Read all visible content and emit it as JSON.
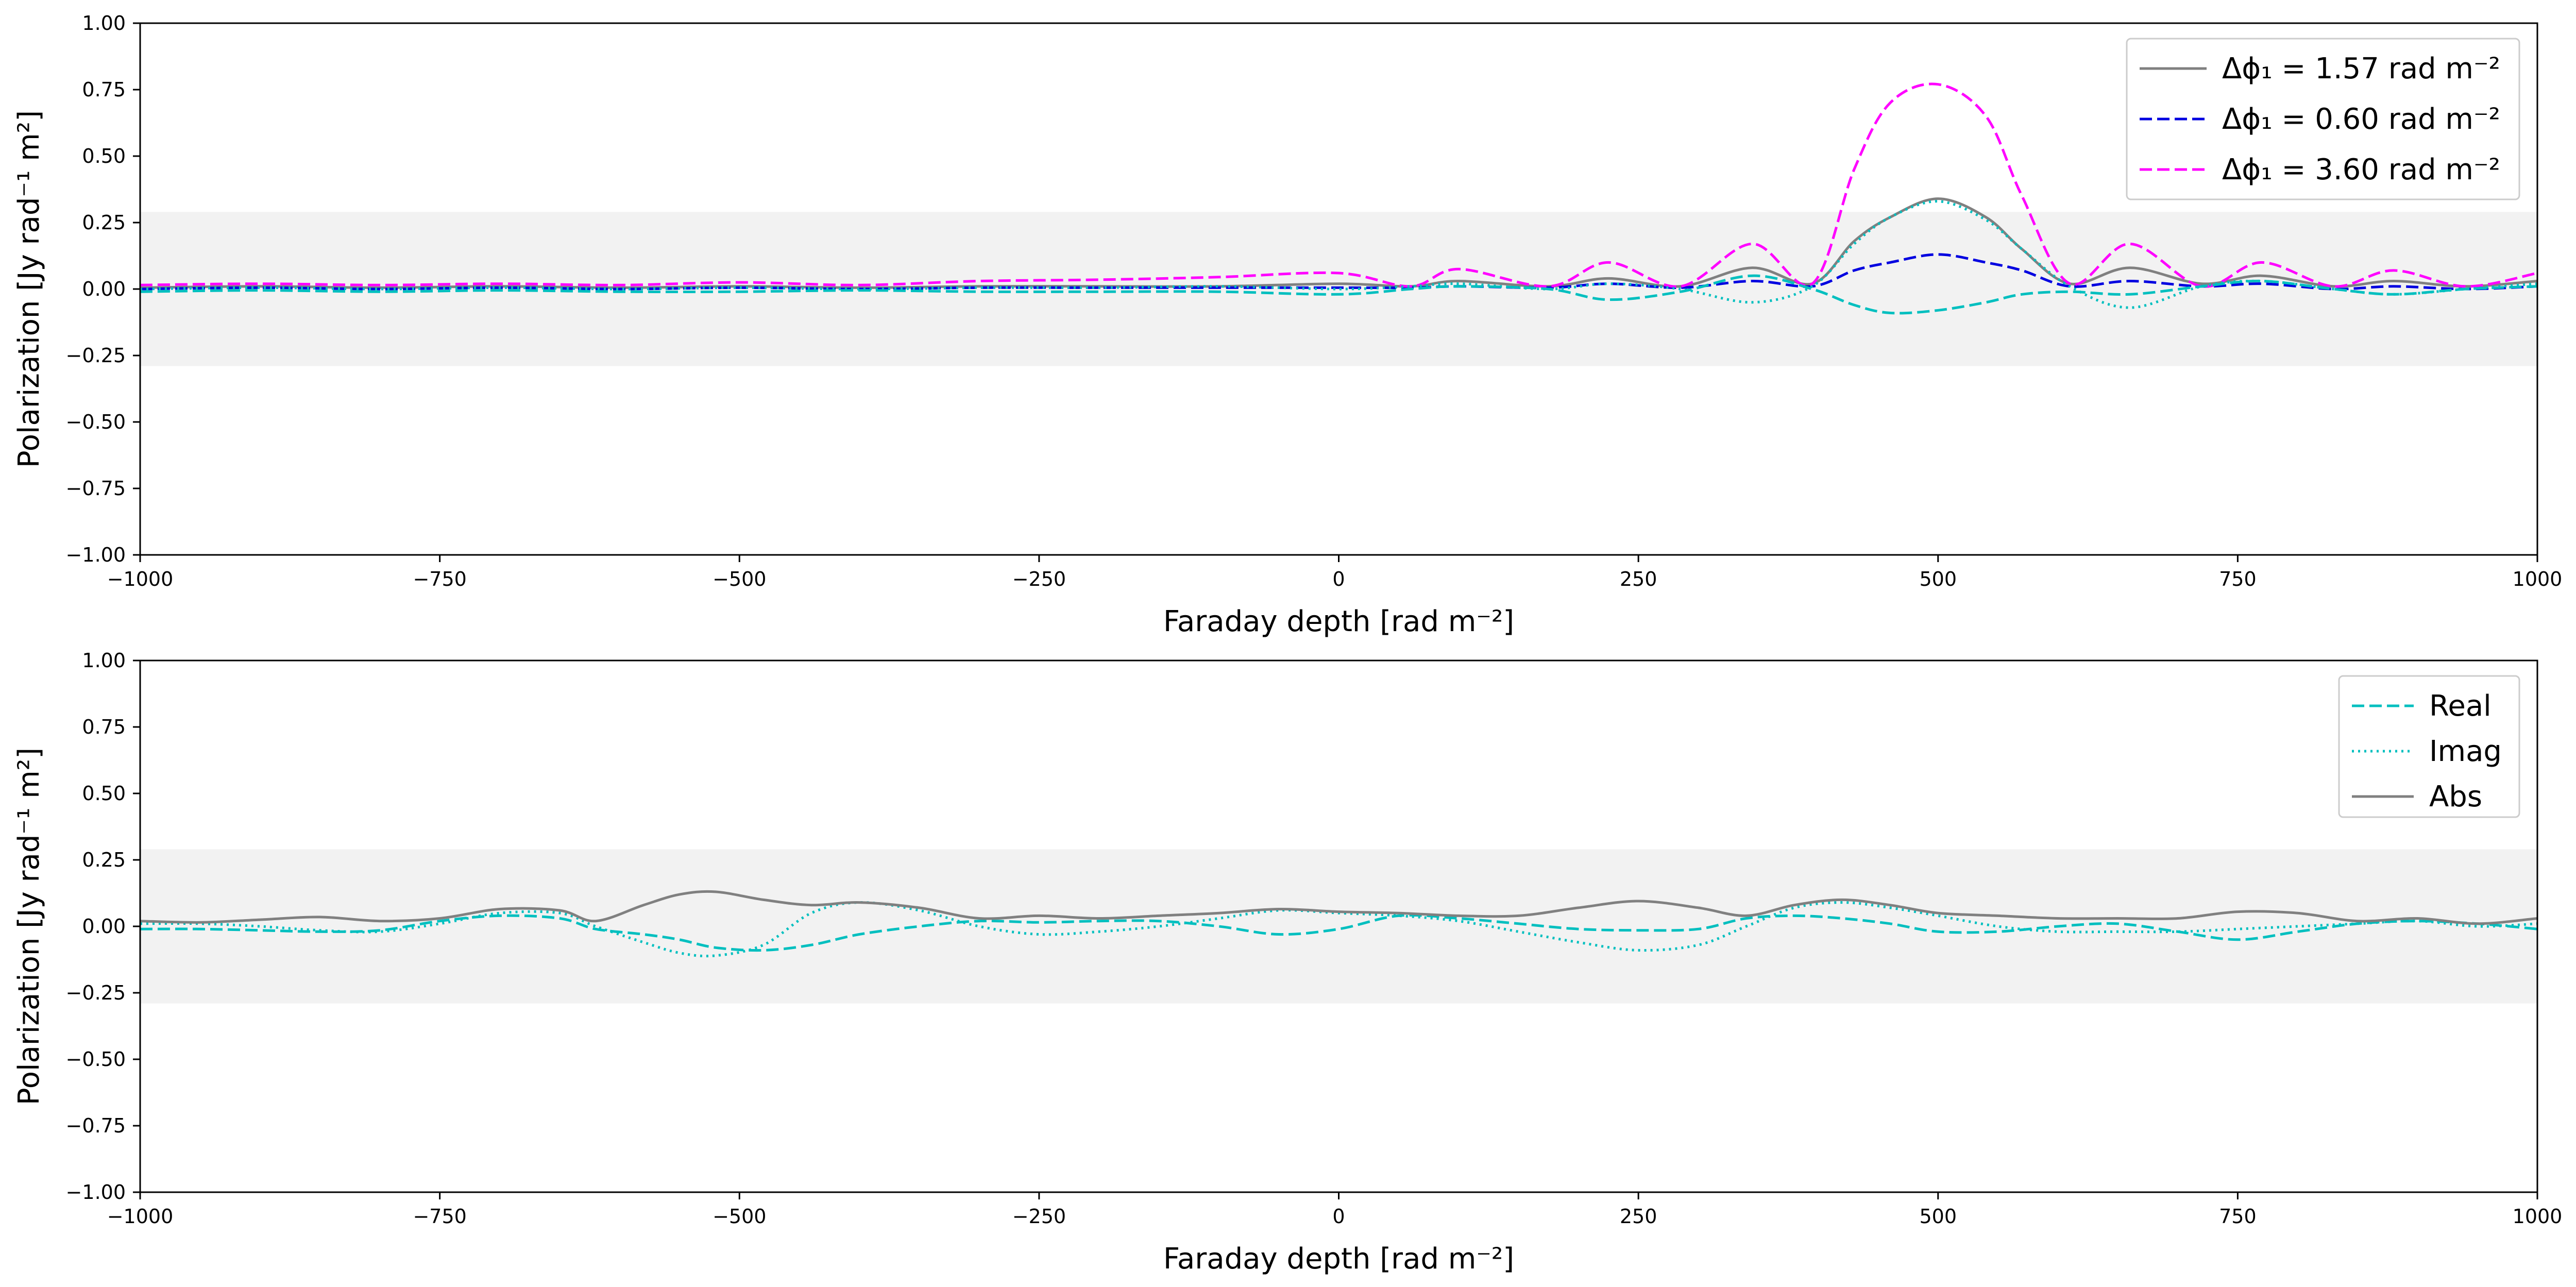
{
  "colors": {
    "gray": "#808080",
    "blue": "#0000e0",
    "magenta": "#ff00ff",
    "cyan": "#00bfbf",
    "band": "#f2f2f2"
  },
  "chart_data": [
    {
      "type": "line",
      "xlabel": "Faraday depth [rad m⁻²]",
      "ylabel": "Polarization [Jy rad⁻¹ m²]",
      "xlim": [
        -1000,
        1000
      ],
      "ylim": [
        -1.0,
        1.0
      ],
      "xticks": [
        "−1000",
        "−750",
        "−500",
        "−250",
        "0",
        "250",
        "500",
        "750",
        "1000"
      ],
      "yticks": [
        "−1.00",
        "−0.75",
        "−0.50",
        "−0.25",
        "0.00",
        "0.25",
        "0.50",
        "0.75",
        "1.00"
      ],
      "shaded_band": [
        -0.29,
        0.29
      ],
      "legend_position": "upper right",
      "legend": [
        {
          "label": "Δϕ₁ = 1.57 rad m⁻²",
          "color": "#808080",
          "style": "solid"
        },
        {
          "label": "Δϕ₁ = 0.60 rad m⁻²",
          "color": "#0000e0",
          "style": "dashed"
        },
        {
          "label": "Δϕ₁ = 3.60 rad m⁻²",
          "color": "#ff00ff",
          "style": "dashed"
        }
      ],
      "x": [
        -1000,
        -900,
        -800,
        -700,
        -600,
        -500,
        -400,
        -300,
        -200,
        -100,
        0,
        60,
        100,
        175,
        225,
        285,
        345,
        395,
        430,
        460,
        500,
        540,
        570,
        610,
        660,
        720,
        770,
        830,
        880,
        940,
        1000
      ],
      "series": [
        {
          "style": "solid",
          "color": "#808080",
          "values": [
            0.005,
            0.01,
            0.005,
            0.01,
            0.005,
            0.01,
            0.005,
            0.01,
            0.01,
            0.01,
            0.02,
            0.01,
            0.03,
            0.01,
            0.04,
            0.01,
            0.08,
            0.02,
            0.18,
            0.27,
            0.34,
            0.27,
            0.15,
            0.02,
            0.08,
            0.02,
            0.05,
            0.01,
            0.03,
            0.01,
            0.03
          ]
        },
        {
          "style": "dashed",
          "color": "#0000e0",
          "values": [
            0.0,
            0.005,
            0.0,
            0.005,
            0.0,
            0.005,
            0.0,
            0.005,
            0.005,
            0.005,
            0.005,
            0.005,
            0.01,
            0.005,
            0.02,
            0.005,
            0.03,
            0.01,
            0.07,
            0.1,
            0.13,
            0.1,
            0.07,
            0.01,
            0.03,
            0.01,
            0.02,
            0.0,
            0.01,
            0.0,
            0.01
          ]
        },
        {
          "style": "dashed",
          "color": "#ff00ff",
          "values": [
            0.015,
            0.02,
            0.015,
            0.02,
            0.015,
            0.025,
            0.015,
            0.03,
            0.035,
            0.045,
            0.06,
            0.01,
            0.075,
            0.01,
            0.1,
            0.01,
            0.17,
            0.02,
            0.45,
            0.7,
            0.77,
            0.65,
            0.35,
            0.02,
            0.17,
            0.01,
            0.1,
            0.01,
            0.07,
            0.01,
            0.06
          ]
        },
        {
          "style": "dashed",
          "color": "#00bfbf",
          "values": [
            -0.01,
            -0.005,
            -0.01,
            -0.005,
            -0.01,
            -0.01,
            -0.005,
            -0.01,
            -0.01,
            -0.01,
            -0.02,
            0.0,
            0.01,
            0.0,
            -0.04,
            -0.01,
            0.05,
            0.0,
            -0.06,
            -0.09,
            -0.08,
            -0.05,
            -0.02,
            -0.01,
            -0.02,
            0.01,
            0.03,
            0.0,
            -0.02,
            0.0,
            0.01
          ]
        },
        {
          "style": "dotted",
          "color": "#00bfbf",
          "values": [
            0.0,
            0.005,
            0.0,
            0.005,
            0.0,
            0.005,
            0.0,
            0.005,
            0.005,
            0.01,
            0.0,
            0.01,
            0.02,
            0.0,
            0.02,
            0.0,
            -0.05,
            0.01,
            0.17,
            0.27,
            0.33,
            0.26,
            0.15,
            0.01,
            -0.07,
            0.01,
            0.03,
            0.0,
            -0.02,
            0.0,
            0.02
          ]
        }
      ]
    },
    {
      "type": "line",
      "xlabel": "Faraday depth [rad m⁻²]",
      "ylabel": "Polarization [Jy rad⁻¹ m²]",
      "xlim": [
        -1000,
        1000
      ],
      "ylim": [
        -1.0,
        1.0
      ],
      "xticks": [
        "−1000",
        "−750",
        "−500",
        "−250",
        "0",
        "250",
        "500",
        "750",
        "1000"
      ],
      "yticks": [
        "−1.00",
        "−0.75",
        "−0.50",
        "−0.25",
        "0.00",
        "0.25",
        "0.50",
        "0.75",
        "1.00"
      ],
      "shaded_band": [
        -0.29,
        0.29
      ],
      "legend_position": "upper right",
      "legend": [
        {
          "label": "Real",
          "color": "#00bfbf",
          "style": "dashed"
        },
        {
          "label": "Imag",
          "color": "#00bfbf",
          "style": "dotted"
        },
        {
          "label": "Abs",
          "color": "#808080",
          "style": "solid"
        }
      ],
      "x": [
        -1000,
        -950,
        -900,
        -850,
        -800,
        -750,
        -700,
        -650,
        -620,
        -580,
        -550,
        -520,
        -480,
        -440,
        -400,
        -350,
        -300,
        -250,
        -200,
        -150,
        -100,
        -50,
        0,
        50,
        100,
        150,
        200,
        250,
        300,
        340,
        380,
        420,
        460,
        500,
        550,
        600,
        650,
        700,
        750,
        800,
        850,
        900,
        950,
        1000
      ],
      "series": [
        {
          "name": "Real",
          "style": "dashed",
          "color": "#00bfbf",
          "values": [
            -0.01,
            -0.01,
            -0.015,
            -0.02,
            -0.015,
            0.02,
            0.04,
            0.03,
            -0.01,
            -0.03,
            -0.05,
            -0.08,
            -0.09,
            -0.07,
            -0.03,
            0.0,
            0.02,
            0.015,
            0.02,
            0.02,
            0.0,
            -0.03,
            -0.01,
            0.04,
            0.03,
            0.01,
            -0.01,
            -0.015,
            -0.01,
            0.03,
            0.04,
            0.03,
            0.01,
            -0.02,
            -0.02,
            0.0,
            0.01,
            -0.02,
            -0.05,
            -0.02,
            0.01,
            0.02,
            0.01,
            -0.01
          ]
        },
        {
          "name": "Imag",
          "style": "dotted",
          "color": "#00bfbf",
          "values": [
            0.01,
            0.01,
            0.0,
            -0.015,
            -0.02,
            0.01,
            0.05,
            0.05,
            0.0,
            -0.06,
            -0.1,
            -0.11,
            -0.07,
            0.05,
            0.09,
            0.06,
            0.0,
            -0.03,
            -0.02,
            0.0,
            0.03,
            0.06,
            0.05,
            0.04,
            0.02,
            -0.02,
            -0.06,
            -0.09,
            -0.07,
            0.0,
            0.07,
            0.09,
            0.07,
            0.04,
            0.0,
            -0.02,
            -0.02,
            -0.02,
            -0.01,
            0.0,
            0.01,
            0.02,
            0.0,
            0.01
          ]
        },
        {
          "name": "Abs",
          "style": "solid",
          "color": "#808080",
          "values": [
            0.02,
            0.015,
            0.025,
            0.035,
            0.02,
            0.03,
            0.065,
            0.06,
            0.02,
            0.08,
            0.12,
            0.13,
            0.1,
            0.08,
            0.09,
            0.07,
            0.03,
            0.04,
            0.03,
            0.04,
            0.05,
            0.065,
            0.055,
            0.05,
            0.04,
            0.04,
            0.07,
            0.095,
            0.07,
            0.04,
            0.08,
            0.1,
            0.08,
            0.05,
            0.04,
            0.03,
            0.03,
            0.03,
            0.055,
            0.05,
            0.02,
            0.03,
            0.01,
            0.03
          ]
        }
      ]
    }
  ]
}
